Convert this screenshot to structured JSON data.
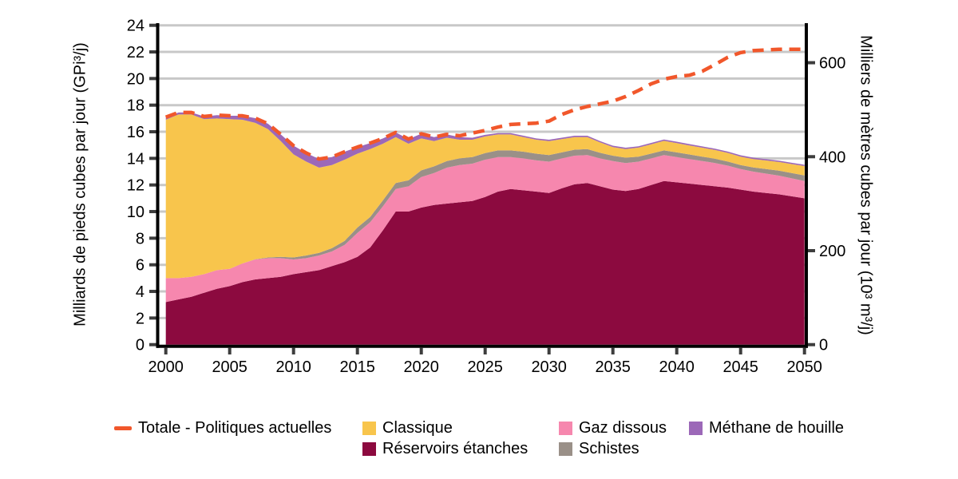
{
  "chart": {
    "left_axis": {
      "title": "Milliards de pieds cubes par jour (GPi³/j)",
      "ticks": [
        0,
        2,
        4,
        6,
        8,
        10,
        12,
        14,
        16,
        18,
        20,
        22,
        24
      ],
      "lim": [
        0,
        24
      ]
    },
    "right_axis": {
      "title": "Milliers de mètres cubes par jour (10³ m³/j)",
      "ticks": [
        0,
        200,
        400,
        600
      ],
      "units_per_left_unit": 28.317
    },
    "x_axis": {
      "ticks": [
        2000,
        2005,
        2010,
        2015,
        2020,
        2025,
        2030,
        2035,
        2040,
        2045,
        2050
      ],
      "lim": [
        2000,
        2050
      ]
    },
    "colors": {
      "grid": "#C8C8C8",
      "axis": "#000000",
      "tick": "#3D3D3D",
      "text": "#000000",
      "background": "#FFFFFF"
    }
  },
  "chart_data": {
    "type": "area",
    "stacked": true,
    "grid": true,
    "legend_position": "bottom",
    "x": [
      2000,
      2001,
      2002,
      2003,
      2004,
      2005,
      2006,
      2007,
      2008,
      2009,
      2010,
      2011,
      2012,
      2013,
      2014,
      2015,
      2016,
      2017,
      2018,
      2019,
      2020,
      2021,
      2022,
      2023,
      2024,
      2025,
      2026,
      2027,
      2028,
      2029,
      2030,
      2031,
      2032,
      2033,
      2034,
      2035,
      2036,
      2037,
      2038,
      2039,
      2040,
      2041,
      2042,
      2043,
      2044,
      2045,
      2046,
      2047,
      2048,
      2049,
      2050
    ],
    "series": [
      {
        "key": "tight",
        "name": "Réservoirs étanches",
        "color": "#8C0A3F",
        "values": [
          3.2,
          3.4,
          3.6,
          3.9,
          4.2,
          4.4,
          4.7,
          4.9,
          5.0,
          5.1,
          5.3,
          5.45,
          5.6,
          5.9,
          6.2,
          6.6,
          7.3,
          8.6,
          10.0,
          10.0,
          10.3,
          10.5,
          10.6,
          10.7,
          10.8,
          11.1,
          11.5,
          11.7,
          11.6,
          11.5,
          11.4,
          11.75,
          12.05,
          12.15,
          11.9,
          11.65,
          11.55,
          11.7,
          12.0,
          12.3,
          12.2,
          12.1,
          12.0,
          11.9,
          11.8,
          11.65,
          11.5,
          11.4,
          11.3,
          11.15,
          11.0
        ]
      },
      {
        "key": "solution",
        "name": "Gaz dissous",
        "color": "#F687AE",
        "values": [
          1.8,
          1.6,
          1.5,
          1.4,
          1.4,
          1.3,
          1.4,
          1.5,
          1.5,
          1.4,
          1.1,
          1.05,
          1.1,
          1.1,
          1.3,
          1.8,
          1.9,
          1.8,
          1.7,
          1.9,
          2.3,
          2.4,
          2.7,
          2.8,
          2.8,
          2.8,
          2.6,
          2.4,
          2.4,
          2.35,
          2.35,
          2.25,
          2.15,
          2.1,
          2.1,
          2.15,
          2.1,
          2.05,
          2.0,
          1.95,
          1.9,
          1.85,
          1.8,
          1.75,
          1.65,
          1.55,
          1.5,
          1.45,
          1.4,
          1.35,
          1.3
        ]
      },
      {
        "key": "shale",
        "name": "Schistes",
        "color": "#9A9088",
        "values": [
          0,
          0,
          0,
          0,
          0,
          0,
          0,
          0.02,
          0.05,
          0.1,
          0.15,
          0.2,
          0.2,
          0.25,
          0.3,
          0.4,
          0.4,
          0.45,
          0.45,
          0.45,
          0.5,
          0.5,
          0.5,
          0.5,
          0.5,
          0.5,
          0.5,
          0.5,
          0.5,
          0.5,
          0.5,
          0.45,
          0.45,
          0.45,
          0.42,
          0.4,
          0.4,
          0.38,
          0.36,
          0.35,
          0.35,
          0.34,
          0.33,
          0.32,
          0.31,
          0.3,
          0.32,
          0.35,
          0.38,
          0.4,
          0.42
        ]
      },
      {
        "key": "conventional",
        "name": "Classique",
        "color": "#F8C54C",
        "values": [
          11.9,
          12.3,
          12.2,
          11.65,
          11.4,
          11.25,
          10.8,
          10.25,
          9.65,
          8.7,
          7.75,
          7.05,
          6.4,
          6.25,
          6.1,
          5.55,
          5.1,
          4.25,
          3.45,
          2.75,
          2.4,
          1.9,
          1.75,
          1.4,
          1.3,
          1.25,
          1.2,
          1.2,
          1.1,
          1.05,
          1.05,
          1.0,
          0.95,
          0.9,
          0.78,
          0.65,
          0.65,
          0.68,
          0.7,
          0.72,
          0.7,
          0.68,
          0.67,
          0.66,
          0.65,
          0.63,
          0.63,
          0.64,
          0.65,
          0.67,
          0.7
        ]
      },
      {
        "key": "cbm",
        "name": "Méthane de houille",
        "color": "#9C68B8",
        "values": [
          0.2,
          0.15,
          0.15,
          0.2,
          0.25,
          0.25,
          0.3,
          0.35,
          0.4,
          0.5,
          0.65,
          0.65,
          0.65,
          0.6,
          0.6,
          0.5,
          0.45,
          0.4,
          0.35,
          0.35,
          0.35,
          0.3,
          0.25,
          0.2,
          0.15,
          0.12,
          0.1,
          0.1,
          0.1,
          0.1,
          0.1,
          0.1,
          0.1,
          0.1,
          0.1,
          0.1,
          0.1,
          0.1,
          0.1,
          0.1,
          0.1,
          0.1,
          0.1,
          0.1,
          0.1,
          0.1,
          0.1,
          0.1,
          0.1,
          0.1,
          0.1
        ]
      }
    ],
    "total_line": {
      "key": "total",
      "name": "Totale - Politiques actuelles",
      "color": "#F1572B",
      "dashed": true,
      "values": [
        17.1,
        17.45,
        17.45,
        17.15,
        17.25,
        17.2,
        17.2,
        17.02,
        16.6,
        15.8,
        14.95,
        14.4,
        13.95,
        14.1,
        14.5,
        14.85,
        15.15,
        15.5,
        15.95,
        15.45,
        15.85,
        15.6,
        15.8,
        15.7,
        15.9,
        16.1,
        16.35,
        16.55,
        16.6,
        16.65,
        16.8,
        17.3,
        17.65,
        17.9,
        18.1,
        18.3,
        18.65,
        19.1,
        19.6,
        19.95,
        20.15,
        20.25,
        20.55,
        21.05,
        21.6,
        21.95,
        22.1,
        22.15,
        22.2,
        22.2,
        22.2
      ]
    },
    "legend": [
      {
        "key": "total",
        "label": "Totale - Politiques actuelles",
        "color": "#F1572B",
        "swatch": "line"
      },
      {
        "key": "conventional",
        "label": "Classique",
        "color": "#F8C54C",
        "swatch": "box"
      },
      {
        "key": "solution",
        "label": "Gaz dissous",
        "color": "#F687AE",
        "swatch": "box"
      },
      {
        "key": "cbm",
        "label": "Méthane de houille",
        "color": "#9C68B8",
        "swatch": "box"
      },
      {
        "key": "tight",
        "label": "Réservoirs étanches",
        "color": "#8C0A3F",
        "swatch": "box"
      },
      {
        "key": "shale",
        "label": "Schistes",
        "color": "#9A9088",
        "swatch": "box"
      }
    ]
  }
}
